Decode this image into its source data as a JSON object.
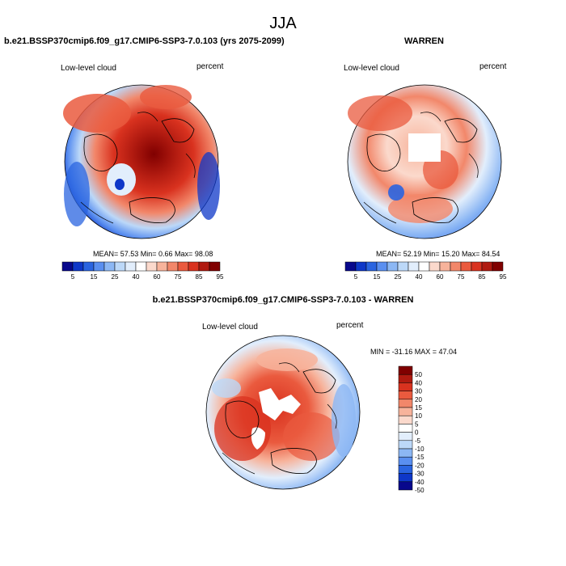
{
  "figure": {
    "title": "JJA",
    "panel1": {
      "title": "b.e21.BSSP370cmip6.f09_g17.CMIP6-SSP3-7.0.103 (yrs 2075-2099)",
      "left_label": "Low-level cloud",
      "right_label": "percent",
      "stats": "MEAN=  57.53  Min=   0.66  Max=  98.08"
    },
    "panel2": {
      "title": "WARREN",
      "left_label": "Low-level cloud",
      "right_label": "percent",
      "stats": "MEAN=  52.19  Min=  15.20  Max=  84.54"
    },
    "panel3": {
      "title": "b.e21.BSSP370cmip6.f09_g17.CMIP6-SSP3-7.0.103 - WARREN",
      "left_label": "Low-level cloud",
      "right_label": "percent",
      "stats": "MIN = -31.16 MAX =  47.04"
    },
    "colorbar_abs": {
      "colors": [
        "#08088c",
        "#0e37c8",
        "#2a64e0",
        "#5a8ff0",
        "#8cb7f4",
        "#bcd8f8",
        "#e2eefc",
        "#ffffff",
        "#fbd9cc",
        "#f7b39b",
        "#f2876a",
        "#ea5a3e",
        "#d9321f",
        "#b01a10",
        "#800000"
      ],
      "tick_labels": [
        "5",
        "15",
        "25",
        "40",
        "60",
        "75",
        "85",
        "95"
      ]
    },
    "colorbar_diff": {
      "colors": [
        "#800000",
        "#b01a10",
        "#d9321f",
        "#ea5a3e",
        "#f2876a",
        "#f7b39b",
        "#fbd9cc",
        "#ffffff",
        "#e2eefc",
        "#bcd8f8",
        "#8cb7f4",
        "#5a8ff0",
        "#2a64e0",
        "#0e37c8",
        "#08088c"
      ],
      "tick_labels": [
        "50",
        "40",
        "30",
        "20",
        "15",
        "10",
        "5",
        "0",
        "-5",
        "-10",
        "-15",
        "-20",
        "-30",
        "-40",
        "-50"
      ]
    }
  }
}
